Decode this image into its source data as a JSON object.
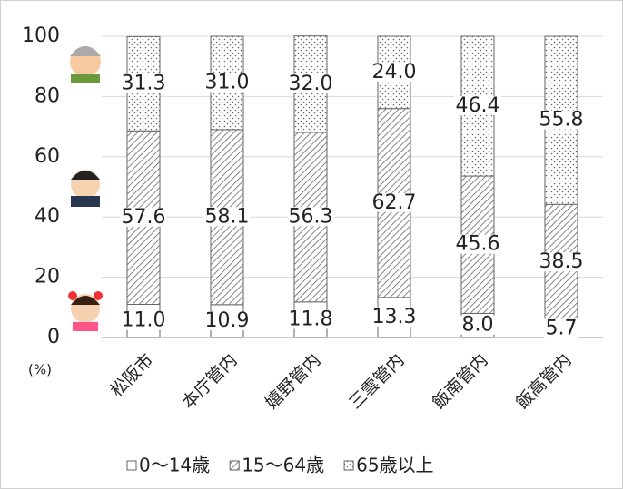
{
  "chart_data": {
    "type": "stacked-bar",
    "y_unit": "(%)",
    "categories": [
      "松阪市",
      "本庁管内",
      "嬉野管内",
      "三雲管内",
      "飯南管内",
      "飯高管内"
    ],
    "series": [
      {
        "name": "0～14歳",
        "color": "#ffffff",
        "pattern": "none",
        "values": [
          11.0,
          10.9,
          11.8,
          13.3,
          8.0,
          5.7
        ],
        "value_labels": [
          "11.0",
          "10.9",
          "11.8",
          "13.3",
          "8.0",
          "5.7"
        ]
      },
      {
        "name": "15～64歳",
        "color": "#555555",
        "pattern": "hatch",
        "values": [
          57.6,
          58.1,
          56.3,
          62.7,
          45.6,
          38.5
        ],
        "value_labels": [
          "57.6",
          "58.1",
          "56.3",
          "62.7",
          "45.6",
          "38.5"
        ]
      },
      {
        "name": "65歳以上",
        "color": "#555555",
        "pattern": "dots",
        "values": [
          31.3,
          31.0,
          32.0,
          24.0,
          46.4,
          55.8
        ],
        "value_labels": [
          "31.3",
          "31.0",
          "32.0",
          "24.0",
          "46.4",
          "55.8"
        ]
      }
    ],
    "ylim": [
      0,
      100
    ],
    "yticks": [
      0,
      20,
      40,
      60,
      80,
      100
    ],
    "grid": true,
    "legend": "bottom"
  }
}
